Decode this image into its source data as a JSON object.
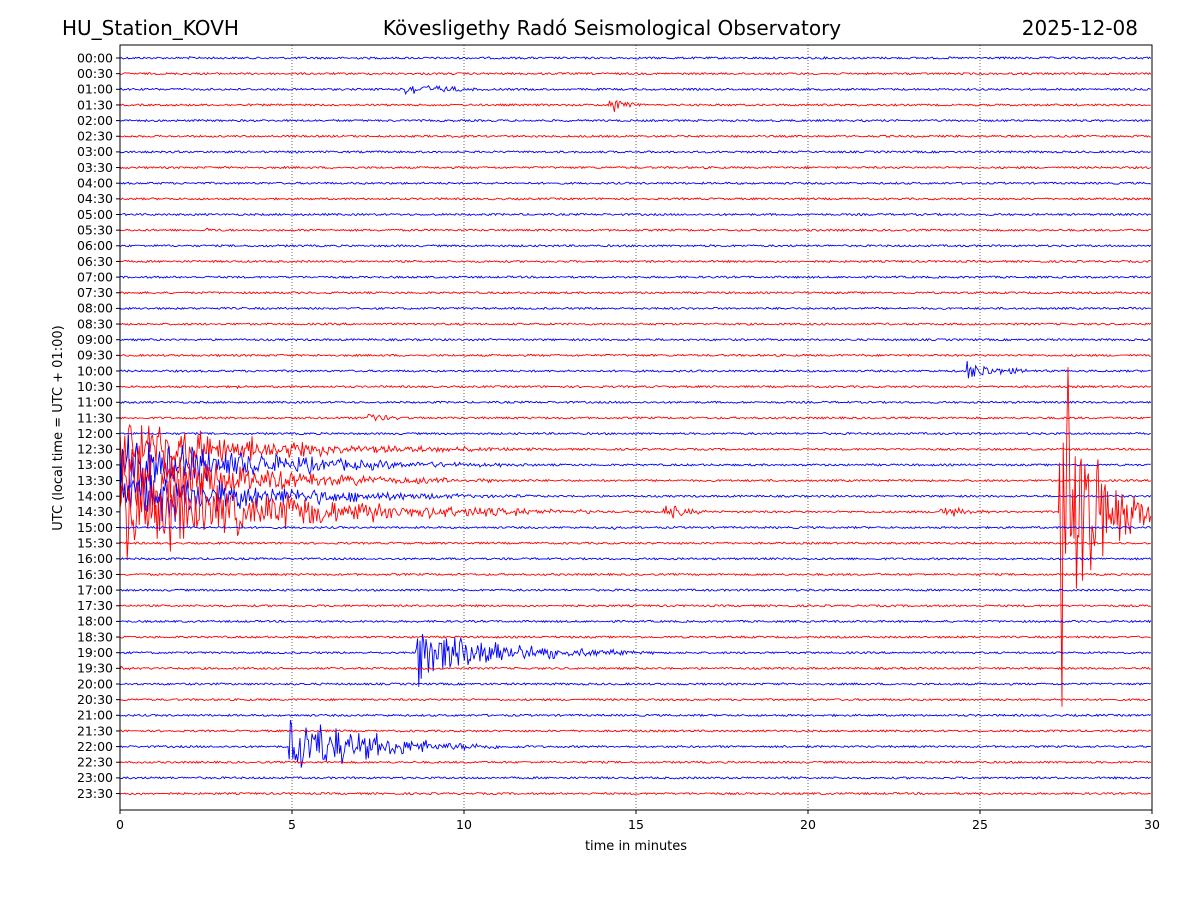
{
  "chart_data": {
    "type": "line",
    "title": "Kövesligethy Radó Seismological Observatory",
    "station": "HU_Station_KOVH",
    "date": "2025-12-08",
    "xlabel": "time in minutes",
    "ylabel": "UTC (local time = UTC + 01:00)",
    "xlim": [
      0,
      30
    ],
    "x_ticks": [
      "0",
      "5",
      "10",
      "15",
      "20",
      "25",
      "30"
    ],
    "grid": "vertical dotted lines at each x tick",
    "row_labels": [
      "00:00",
      "00:30",
      "01:00",
      "01:30",
      "02:00",
      "02:30",
      "03:00",
      "03:30",
      "04:00",
      "04:30",
      "05:00",
      "05:30",
      "06:00",
      "06:30",
      "07:00",
      "07:30",
      "08:00",
      "08:30",
      "09:00",
      "09:30",
      "10:00",
      "10:30",
      "11:00",
      "11:30",
      "12:00",
      "12:30",
      "13:00",
      "13:30",
      "14:00",
      "14:30",
      "15:00",
      "15:30",
      "16:00",
      "16:30",
      "17:00",
      "17:30",
      "18:00",
      "18:30",
      "19:00",
      "19:30",
      "20:00",
      "20:30",
      "21:00",
      "21:30",
      "22:00",
      "22:30",
      "23:00",
      "23:30"
    ],
    "trace_colors": [
      "#0000ff",
      "#ff0000"
    ],
    "baseline_amplitude": 1.0,
    "events": [
      {
        "row": "00:00",
        "start_min": 2.0,
        "peak_amp": 3,
        "duration_min": 0.3
      },
      {
        "row": "01:00",
        "start_min": 8.3,
        "peak_amp": 8,
        "duration_min": 4.5
      },
      {
        "row": "01:30",
        "start_min": 14.2,
        "peak_amp": 11,
        "duration_min": 1.8
      },
      {
        "row": "05:30",
        "start_min": 2.5,
        "peak_amp": 3,
        "duration_min": 3.0
      },
      {
        "row": "10:00",
        "start_min": 24.6,
        "peak_amp": 12,
        "duration_min": 3.5
      },
      {
        "row": "10:30",
        "start_min": 3.4,
        "peak_amp": 4,
        "duration_min": 0.2
      },
      {
        "row": "11:30",
        "start_min": 7.2,
        "peak_amp": 8,
        "duration_min": 2.0
      },
      {
        "row": "12:30",
        "start_min": 0.0,
        "peak_amp": 40,
        "duration_min": 12.0
      },
      {
        "row": "13:00",
        "start_min": 0.0,
        "peak_amp": 40,
        "duration_min": 12.0
      },
      {
        "row": "13:30",
        "start_min": 0.0,
        "peak_amp": 40,
        "duration_min": 12.0
      },
      {
        "row": "14:00",
        "start_min": 0.0,
        "peak_amp": 40,
        "duration_min": 12.0
      },
      {
        "row": "14:30",
        "start_min": 0.0,
        "peak_amp": 60,
        "duration_min": 14.0
      },
      {
        "row": "14:30",
        "start_min": 15.8,
        "peak_amp": 10,
        "duration_min": 2.5
      },
      {
        "row": "14:30",
        "start_min": 23.8,
        "peak_amp": 9,
        "duration_min": 2.5
      },
      {
        "row": "15:00",
        "start_min": 14.2,
        "peak_amp": 4,
        "duration_min": 1.0
      },
      {
        "row": "16:00",
        "start_min": 10.0,
        "peak_amp": 3,
        "duration_min": 1.0
      },
      {
        "row": "19:00",
        "start_min": 8.6,
        "peak_amp": 45,
        "duration_min": 7.0
      },
      {
        "row": "19:30",
        "start_min": 0.0,
        "peak_amp": 4,
        "duration_min": 1.5
      },
      {
        "row": "22:00",
        "start_min": 4.9,
        "peak_amp": 45,
        "duration_min": 7.0
      },
      {
        "row": "22:00",
        "start_min": 19.3,
        "peak_amp": 3,
        "duration_min": 1.0
      },
      {
        "row": "14:30",
        "start_min": 27.3,
        "peak_amp": 300,
        "duration_min": 2.7
      }
    ]
  }
}
